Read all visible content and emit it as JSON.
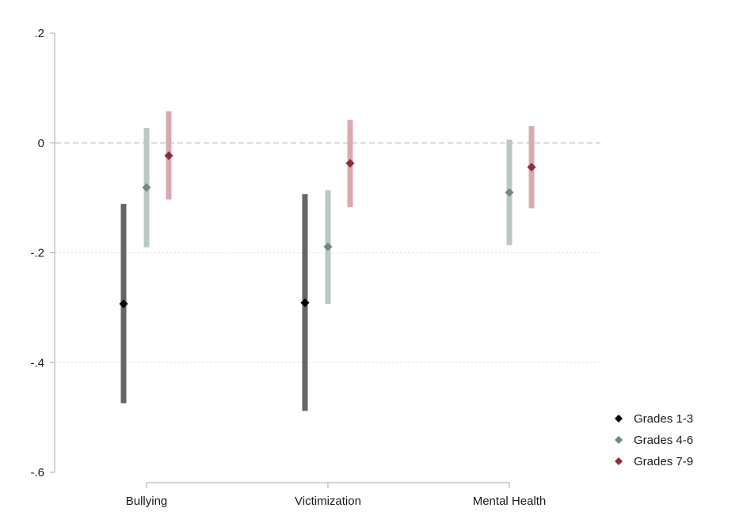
{
  "chart_data": {
    "type": "scatter",
    "subtype": "coefficient-plot-with-confidence-intervals",
    "title": "",
    "xlabel": "",
    "ylabel": "",
    "categories": [
      "Bullying",
      "Victimization",
      "Mental Health"
    ],
    "ylim": [
      -0.6,
      0.2
    ],
    "yticks": [
      {
        "value": 0.2,
        "label": ".2"
      },
      {
        "value": 0,
        "label": "0"
      },
      {
        "value": -0.2,
        "label": "-.2"
      },
      {
        "value": -0.4,
        "label": "-.4"
      },
      {
        "value": -0.6,
        "label": "-.6"
      }
    ],
    "reference_line": {
      "value": 0,
      "style": "dashed"
    },
    "grid": "horizontal dotted",
    "legend_position": "right-bottom",
    "series": [
      {
        "name": "Grades 1-3",
        "marker_color": "#000000",
        "ci_color": "#666666",
        "points": [
          {
            "category": "Bullying",
            "estimate": -0.293,
            "ci": [
              -0.474,
              -0.111
            ]
          },
          {
            "category": "Victimization",
            "estimate": -0.291,
            "ci": [
              -0.488,
              -0.093
            ]
          },
          {
            "category": "Mental Health",
            "estimate": null,
            "ci": null
          }
        ]
      },
      {
        "name": "Grades 4-6",
        "marker_color": "#6f8a84",
        "ci_color": "#b9c8c4",
        "points": [
          {
            "category": "Bullying",
            "estimate": -0.081,
            "ci": [
              -0.19,
              0.027
            ]
          },
          {
            "category": "Victimization",
            "estimate": -0.189,
            "ci": [
              -0.293,
              -0.086
            ]
          },
          {
            "category": "Mental Health",
            "estimate": -0.09,
            "ci": [
              -0.186,
              0.006
            ]
          }
        ]
      },
      {
        "name": "Grades 7-9",
        "marker_color": "#8b2f3c",
        "ci_color": "#d9a9b0",
        "points": [
          {
            "category": "Bullying",
            "estimate": -0.023,
            "ci": [
              -0.103,
              0.058
            ]
          },
          {
            "category": "Victimization",
            "estimate": -0.037,
            "ci": [
              -0.117,
              0.042
            ]
          },
          {
            "category": "Mental Health",
            "estimate": -0.044,
            "ci": [
              -0.119,
              0.031
            ]
          }
        ]
      }
    ]
  }
}
